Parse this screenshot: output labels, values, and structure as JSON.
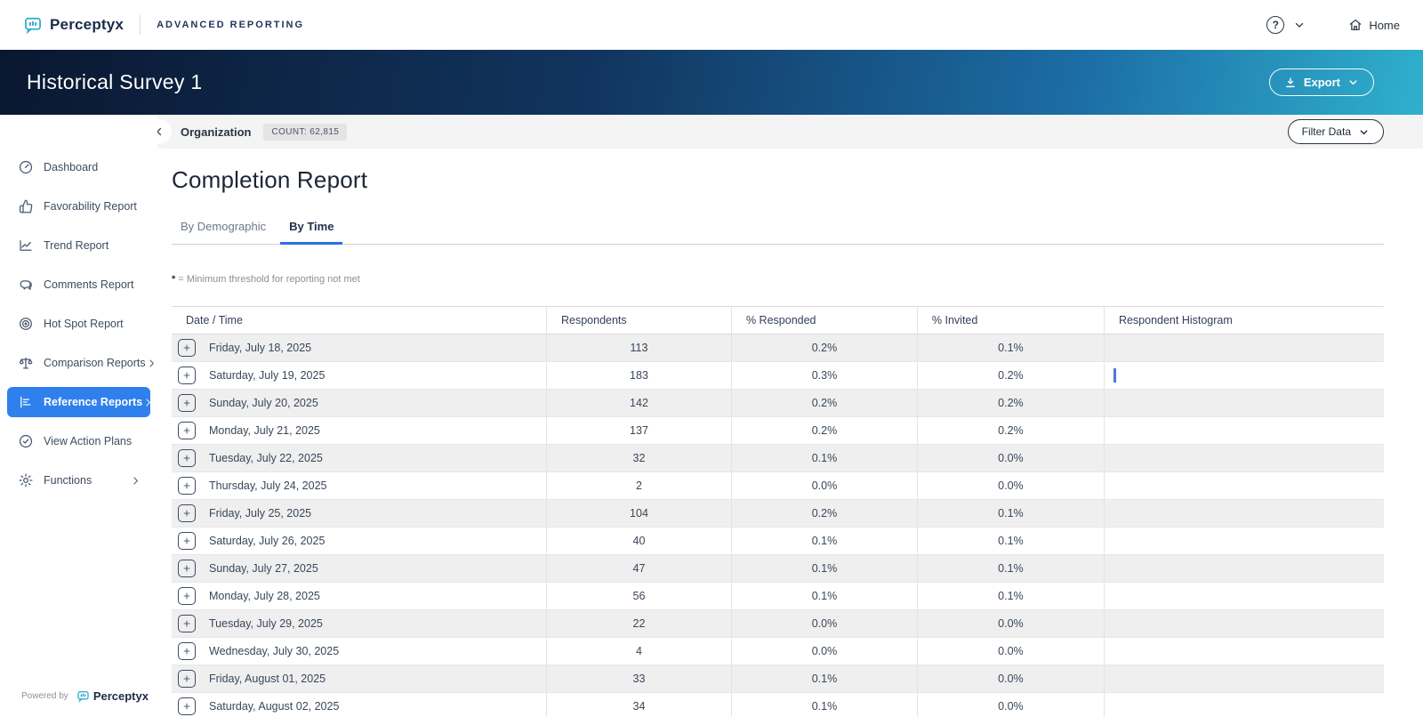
{
  "topbar": {
    "brand": "Perceptyx",
    "product": "ADVANCED REPORTING",
    "help_icon": "question-circle-icon",
    "home_label": "Home"
  },
  "hero": {
    "title": "Historical Survey 1",
    "export_label": "Export"
  },
  "context_bar": {
    "breadcrumb": "Organization",
    "count_badge": "COUNT: 62,815",
    "filter_label": "Filter Data"
  },
  "sidebar": {
    "items": [
      {
        "label": "Dashboard",
        "icon": "gauge",
        "selected": false,
        "chevron": false
      },
      {
        "label": "Favorability Report",
        "icon": "thumbs-up",
        "selected": false,
        "chevron": false
      },
      {
        "label": "Trend Report",
        "icon": "trend-chart",
        "selected": false,
        "chevron": false
      },
      {
        "label": "Comments Report",
        "icon": "comments",
        "selected": false,
        "chevron": false
      },
      {
        "label": "Hot Spot Report",
        "icon": "target",
        "selected": false,
        "chevron": false
      },
      {
        "label": "Comparison Reports",
        "icon": "scale",
        "selected": false,
        "chevron": true
      },
      {
        "label": "Reference Reports",
        "icon": "bar-chart",
        "selected": true,
        "chevron": true
      },
      {
        "label": "View Action Plans",
        "icon": "check-circle",
        "selected": false,
        "chevron": false
      },
      {
        "label": "Functions",
        "icon": "gear",
        "selected": false,
        "chevron": true
      }
    ],
    "powered_by": "Powered by",
    "powered_brand": "Perceptyx"
  },
  "report": {
    "title": "Completion Report",
    "tabs": [
      {
        "label": "By Demographic",
        "active": false
      },
      {
        "label": "By Time",
        "active": true
      }
    ],
    "footnote_symbol": "*",
    "footnote_text": "= Minimum threshold for reporting not met"
  },
  "table": {
    "columns": [
      "Date / Time",
      "Respondents",
      "% Responded",
      "% Invited",
      "Respondent Histogram"
    ],
    "rows": [
      {
        "date": "Friday, July 18, 2025",
        "respondents": "113",
        "responded": "0.2%",
        "invited": "0.1%",
        "bar": false
      },
      {
        "date": "Saturday, July 19, 2025",
        "respondents": "183",
        "responded": "0.3%",
        "invited": "0.2%",
        "bar": true
      },
      {
        "date": "Sunday, July 20, 2025",
        "respondents": "142",
        "responded": "0.2%",
        "invited": "0.2%",
        "bar": false
      },
      {
        "date": "Monday, July 21, 2025",
        "respondents": "137",
        "responded": "0.2%",
        "invited": "0.2%",
        "bar": false
      },
      {
        "date": "Tuesday, July 22, 2025",
        "respondents": "32",
        "responded": "0.1%",
        "invited": "0.0%",
        "bar": false
      },
      {
        "date": "Thursday, July 24, 2025",
        "respondents": "2",
        "responded": "0.0%",
        "invited": "0.0%",
        "bar": false
      },
      {
        "date": "Friday, July 25, 2025",
        "respondents": "104",
        "responded": "0.2%",
        "invited": "0.1%",
        "bar": false
      },
      {
        "date": "Saturday, July 26, 2025",
        "respondents": "40",
        "responded": "0.1%",
        "invited": "0.1%",
        "bar": false
      },
      {
        "date": "Sunday, July 27, 2025",
        "respondents": "47",
        "responded": "0.1%",
        "invited": "0.1%",
        "bar": false
      },
      {
        "date": "Monday, July 28, 2025",
        "respondents": "56",
        "responded": "0.1%",
        "invited": "0.1%",
        "bar": false
      },
      {
        "date": "Tuesday, July 29, 2025",
        "respondents": "22",
        "responded": "0.0%",
        "invited": "0.0%",
        "bar": false
      },
      {
        "date": "Wednesday, July 30, 2025",
        "respondents": "4",
        "responded": "0.0%",
        "invited": "0.0%",
        "bar": false
      },
      {
        "date": "Friday, August 01, 2025",
        "respondents": "33",
        "responded": "0.1%",
        "invited": "0.0%",
        "bar": false
      },
      {
        "date": "Saturday, August 02, 2025",
        "respondents": "34",
        "responded": "0.1%",
        "invited": "0.0%",
        "bar": false
      }
    ]
  },
  "colors": {
    "accent_blue": "#2f80ed",
    "tab_underline": "#2b6fe3",
    "hero_gradient_start": "#0a1730",
    "hero_gradient_end": "#2fb0cd",
    "histogram_bar": "#4c79dd",
    "row_alt_bg": "#efefef",
    "logo_teal": "#35b0d0"
  }
}
